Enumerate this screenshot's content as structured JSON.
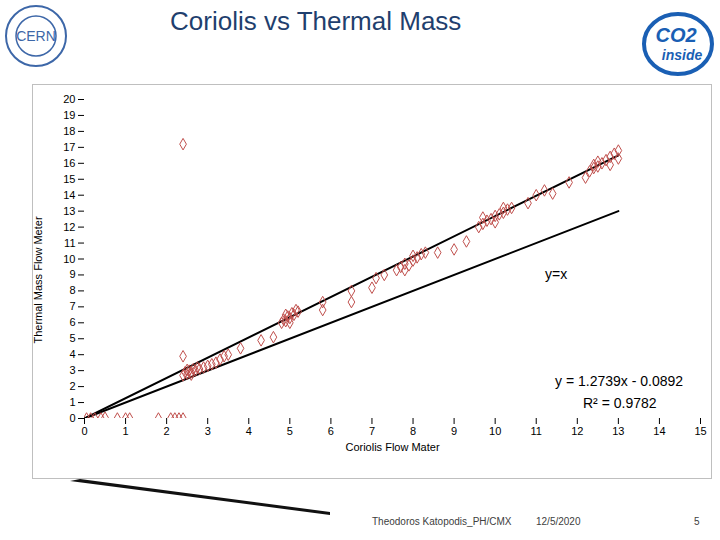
{
  "chart_data": {
    "type": "scatter",
    "title": "Coriolis vs Thermal Mass",
    "x_label": "Coriolis Flow Mater",
    "y_label": "Thermal Mass Flow Meter",
    "annotations": [
      "y=x",
      "y = 1.2739x - 0.0892",
      "R² = 0.9782"
    ],
    "logos": {
      "left": "CERN",
      "right": [
        "CO2",
        "inside"
      ]
    },
    "footer": {
      "author": "Theodoros Katopodis_PH/CMX",
      "date": "12/5/2020",
      "page": "5"
    },
    "marker": "diamond",
    "color": "#c0504d",
    "x": [
      0.05,
      0.15,
      0.25,
      0.4,
      0.5,
      0.8,
      1.0,
      1.1,
      1.8,
      2.1,
      2.2,
      2.3,
      2.4,
      2.4,
      2.4,
      2.4,
      2.45,
      2.5,
      2.55,
      2.6,
      2.65,
      2.7,
      2.75,
      2.8,
      2.5,
      2.6,
      2.9,
      3.0,
      3.1,
      3.2,
      3.3,
      3.4,
      3.5,
      3.8,
      4.3,
      4.6,
      4.8,
      4.85,
      4.9,
      4.95,
      5.0,
      5.05,
      5.1,
      5.15,
      5.2,
      4.9,
      5.0,
      5.8,
      5.8,
      6.5,
      6.5,
      7.0,
      7.1,
      7.3,
      7.6,
      7.7,
      7.8,
      7.9,
      8.0,
      8.1,
      8.2,
      8.3,
      7.8,
      8.0,
      8.6,
      9.0,
      9.3,
      9.6,
      9.7,
      9.8,
      9.9,
      10.0,
      10.1,
      10.2,
      10.3,
      10.4,
      9.7,
      10.0,
      10.2,
      10.8,
      11.0,
      11.2,
      11.4,
      11.8,
      12.2,
      12.3,
      12.4,
      12.5,
      12.6,
      12.7,
      12.8,
      12.9,
      13.0,
      12.5,
      12.8,
      13.0,
      12.4
    ],
    "values": [
      0,
      0,
      0,
      0,
      0.05,
      0,
      0,
      0,
      0,
      0,
      0,
      0,
      0,
      17.2,
      3.9,
      2.7,
      2.9,
      2.8,
      3.0,
      2.9,
      3.1,
      3.0,
      3.2,
      3.1,
      3.05,
      2.75,
      3.2,
      3.3,
      3.4,
      3.5,
      3.7,
      3.9,
      4.0,
      4.4,
      4.9,
      5.1,
      6.0,
      6.2,
      6.1,
      6.4,
      6.3,
      6.6,
      6.5,
      6.8,
      6.7,
      6.5,
      6.0,
      6.8,
      7.3,
      7.3,
      8.0,
      8.2,
      8.8,
      9.0,
      9.3,
      9.5,
      9.7,
      9.6,
      9.9,
      10.1,
      10.3,
      10.4,
      9.3,
      10.2,
      10.4,
      10.6,
      11.1,
      12.0,
      12.2,
      12.4,
      12.5,
      12.7,
      12.8,
      12.9,
      13.1,
      13.2,
      12.6,
      12.3,
      13.2,
      13.5,
      14.0,
      14.3,
      14.1,
      14.8,
      15.1,
      15.5,
      15.7,
      15.8,
      16.0,
      16.2,
      16.4,
      16.6,
      16.8,
      16.1,
      15.9,
      16.3,
      15.9
    ],
    "trend_lines": [
      {
        "x": [
          0,
          13
        ],
        "values": [
          0,
          13
        ],
        "color": "#000000"
      },
      {
        "x": [
          0,
          13
        ],
        "values": [
          0,
          16.5
        ],
        "color": "#000000"
      }
    ],
    "xlim": [
      0,
      15
    ],
    "xticks": [
      0,
      1,
      2,
      3,
      4,
      5,
      6,
      7,
      8,
      9,
      10,
      11,
      12,
      13,
      14,
      15
    ],
    "ylim": [
      0,
      20
    ],
    "yticks": [
      0,
      1,
      2,
      3,
      4,
      5,
      6,
      7,
      8,
      9,
      10,
      11,
      12,
      13,
      14,
      15,
      16,
      17,
      18,
      19,
      20
    ],
    "grid": false
  }
}
